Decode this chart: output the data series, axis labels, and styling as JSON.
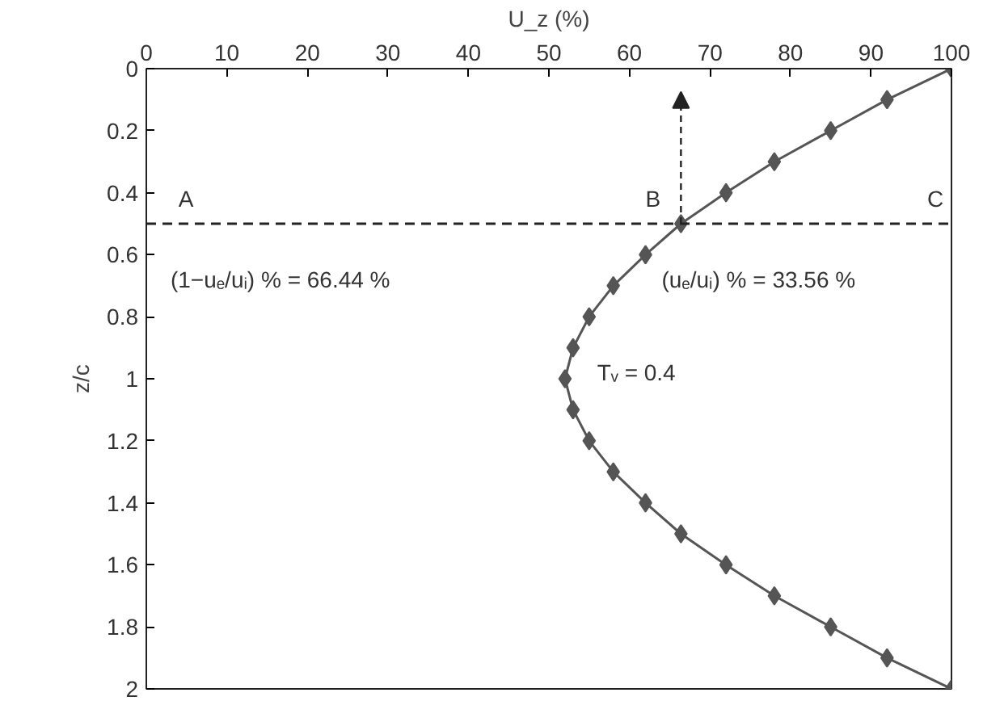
{
  "chart_data": {
    "type": "line",
    "xlabel": "U_z (%)",
    "ylabel": "z/c",
    "series": [
      {
        "color": "#555555",
        "x": [
          100,
          92,
          85,
          78,
          72,
          66.4,
          62,
          58,
          55,
          53,
          52,
          53,
          55,
          58,
          62,
          66.4,
          72,
          78,
          85,
          92,
          100
        ],
        "values": [
          0,
          0.1,
          0.2,
          0.3,
          0.4,
          0.5,
          0.6,
          0.7,
          0.8,
          0.9,
          1,
          1.1,
          1.2,
          1.3,
          1.4,
          1.5,
          1.6,
          1.7,
          1.8,
          1.9,
          2
        ]
      }
    ],
    "xlim": [
      0,
      100
    ],
    "xticks": [
      0,
      10,
      20,
      30,
      40,
      50,
      60,
      70,
      80,
      90,
      100
    ],
    "ylim": [
      2,
      0
    ],
    "yticks": [
      0,
      0.2,
      0.4,
      0.6,
      0.8,
      1,
      1.2,
      1.4,
      1.6,
      1.8,
      2
    ],
    "marker": "diamond",
    "line_style": "solid",
    "grid": false,
    "ref_lines": [
      {
        "axis": "y",
        "value": 0.5,
        "color": "#222222",
        "line_style": "dashed"
      }
    ],
    "annotations": [
      "A",
      "B",
      "C",
      "(1−uₑ/uᵢ) % = 66.44 %",
      "(uₑ/uᵢ) % = 33.56 %",
      "Tᵥ = 0.4"
    ]
  }
}
